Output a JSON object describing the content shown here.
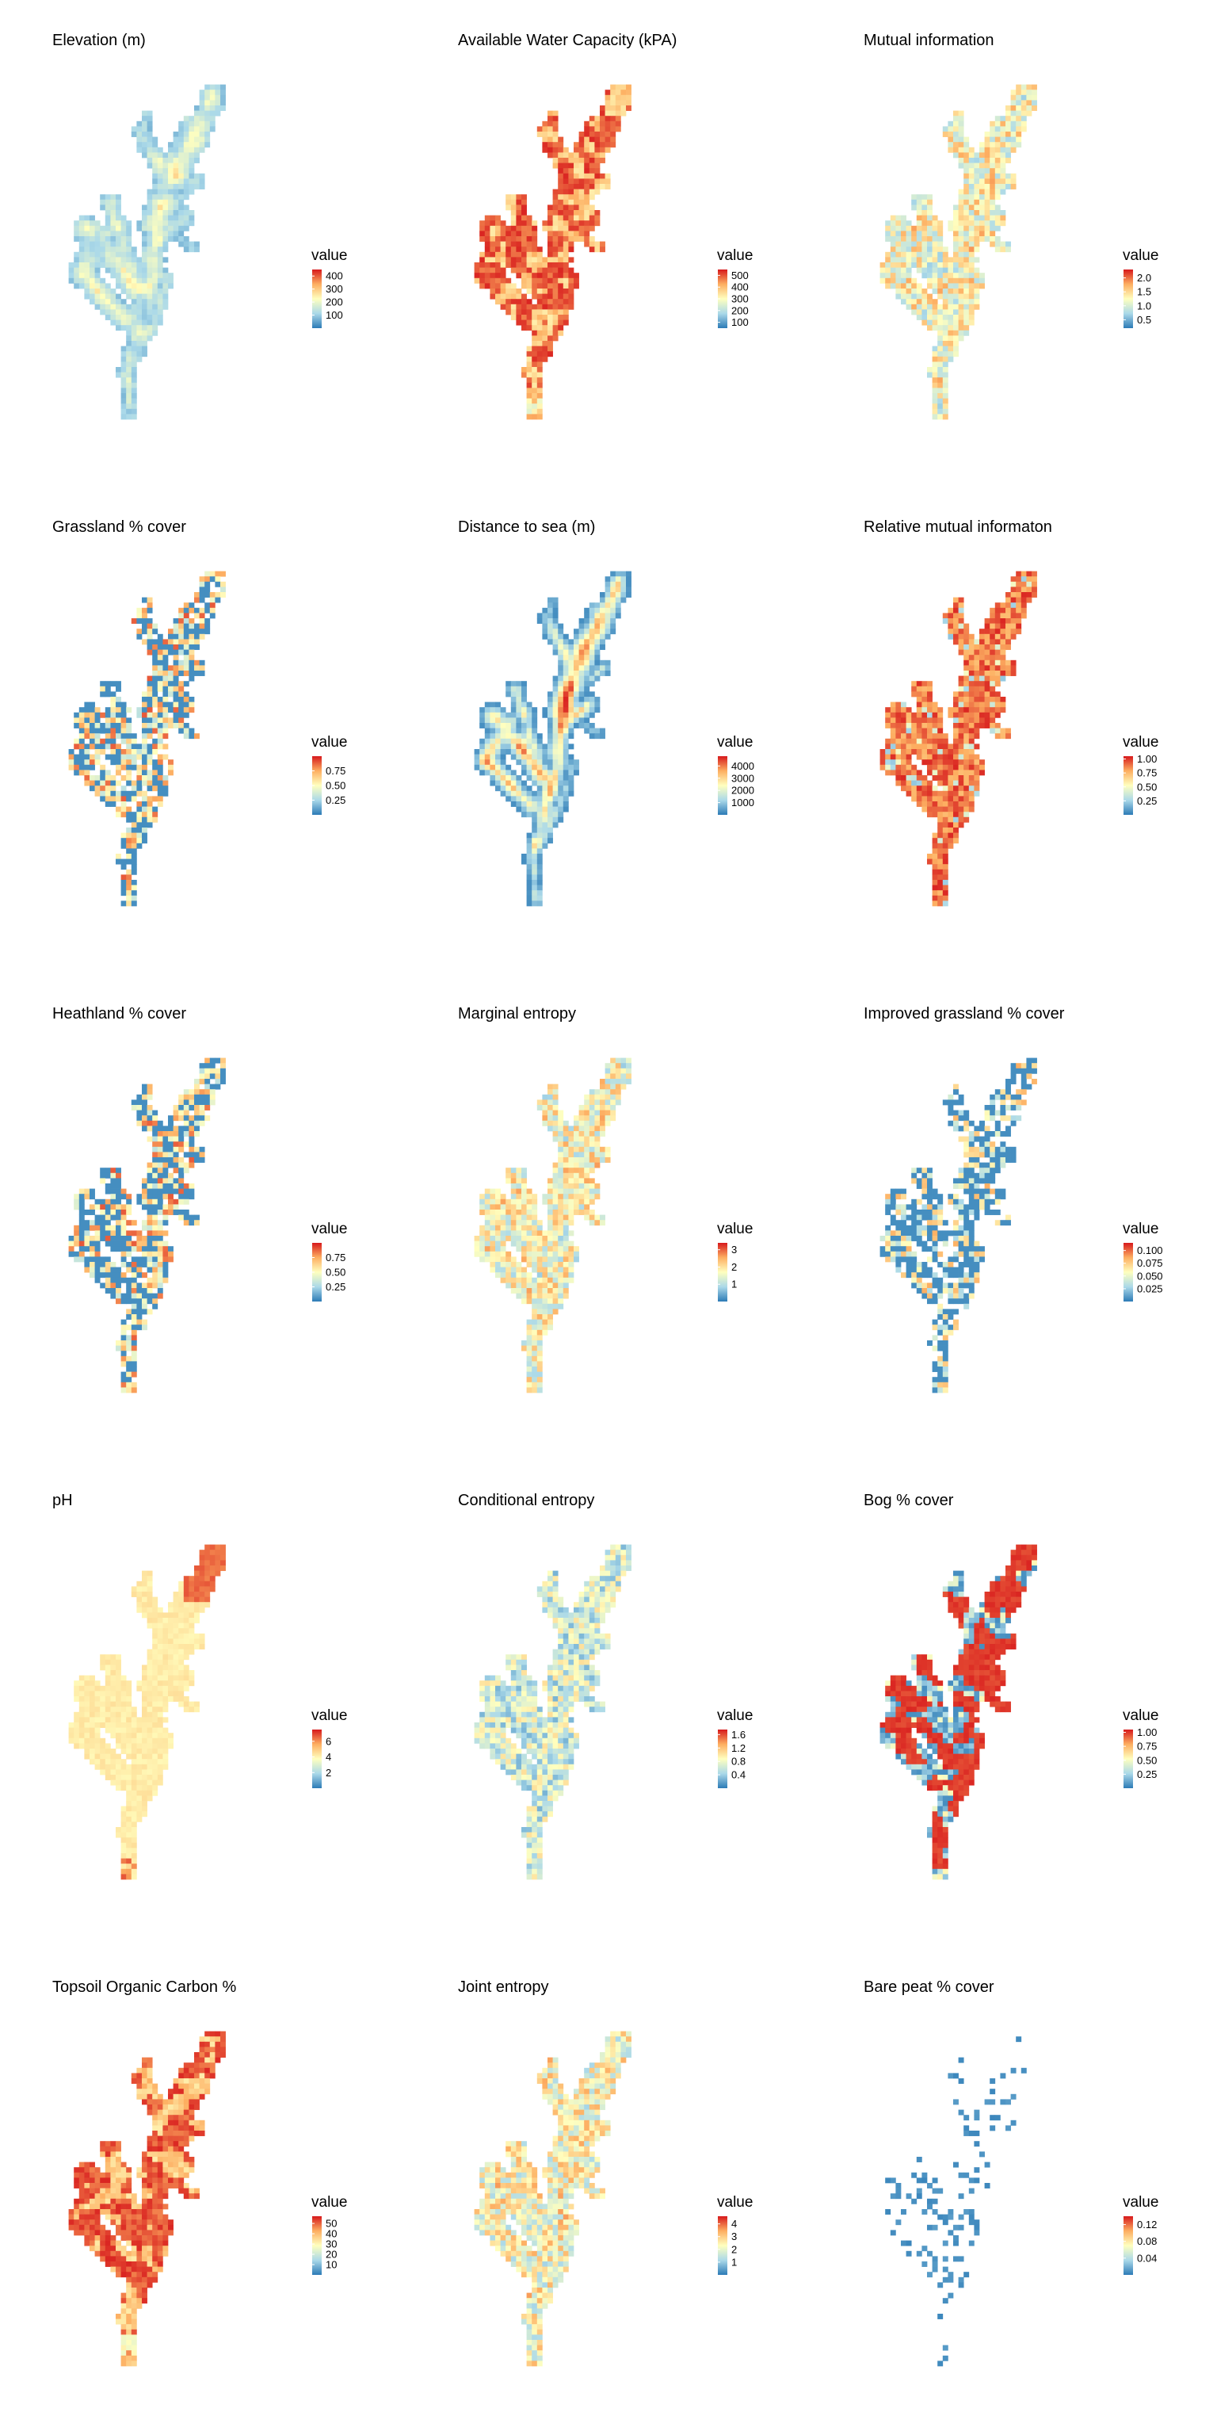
{
  "colors": {
    "palette": [
      "#2c7bb6",
      "#abd9e9",
      "#ffffbf",
      "#fdae61",
      "#d7191c"
    ],
    "background": "#ffffff"
  },
  "legend_title": "value",
  "chart_data": [
    {
      "type": "heatmap",
      "title": "Elevation (m)",
      "legend_title": "value",
      "range": [
        0,
        450
      ],
      "ticks": [
        "400",
        "300",
        "200",
        "100"
      ],
      "tick_values": [
        400,
        300,
        200,
        100
      ],
      "pattern": "elevation"
    },
    {
      "type": "heatmap",
      "title": "Available Water Capacity (kPA)",
      "legend_title": "value",
      "range": [
        50,
        550
      ],
      "ticks": [
        "500",
        "400",
        "300",
        "200",
        "100"
      ],
      "tick_values": [
        500,
        400,
        300,
        200,
        100
      ],
      "pattern": "blocky-high"
    },
    {
      "type": "heatmap",
      "title": "Mutual information",
      "legend_title": "value",
      "range": [
        0.2,
        2.3
      ],
      "ticks": [
        "2.0",
        "1.5",
        "1.0",
        "0.5"
      ],
      "tick_values": [
        2.0,
        1.5,
        1.0,
        0.5
      ],
      "pattern": "noisy-mid"
    },
    {
      "type": "heatmap",
      "title": "Grassland % cover",
      "legend_title": "value",
      "range": [
        0,
        1
      ],
      "ticks": [
        "0.75",
        "0.50",
        "0.25"
      ],
      "tick_values": [
        0.75,
        0.5,
        0.25
      ],
      "pattern": "noisy-low"
    },
    {
      "type": "heatmap",
      "title": "Distance to sea (m)",
      "legend_title": "value",
      "range": [
        0,
        4800
      ],
      "ticks": [
        "4000",
        "3000",
        "2000",
        "1000"
      ],
      "tick_values": [
        4000,
        3000,
        2000,
        1000
      ],
      "pattern": "distance"
    },
    {
      "type": "heatmap",
      "title": "Relative mutual informaton",
      "legend_title": "value",
      "range": [
        0,
        1.05
      ],
      "ticks": [
        "1.00",
        "0.75",
        "0.50",
        "0.25"
      ],
      "tick_values": [
        1.0,
        0.75,
        0.5,
        0.25
      ],
      "pattern": "noisy-high"
    },
    {
      "type": "heatmap",
      "title": "Heathland % cover",
      "legend_title": "value",
      "range": [
        0,
        1
      ],
      "ticks": [
        "0.75",
        "0.50",
        "0.25"
      ],
      "tick_values": [
        0.75,
        0.5,
        0.25
      ],
      "pattern": "noisy-low"
    },
    {
      "type": "heatmap",
      "title": "Marginal entropy",
      "legend_title": "value",
      "range": [
        0,
        3.4
      ],
      "ticks": [
        "3",
        "2",
        "1"
      ],
      "tick_values": [
        3,
        2,
        1
      ],
      "pattern": "noisy-mid"
    },
    {
      "type": "heatmap",
      "title": "Improved grassland % cover",
      "legend_title": "value",
      "range": [
        0,
        0.115
      ],
      "ticks": [
        "0.100",
        "0.075",
        "0.050",
        "0.025"
      ],
      "tick_values": [
        0.1,
        0.075,
        0.05,
        0.025
      ],
      "pattern": "sparse-low"
    },
    {
      "type": "heatmap",
      "title": "pH",
      "legend_title": "value",
      "range": [
        0,
        7.5
      ],
      "ticks": [
        "6",
        "4",
        "2"
      ],
      "tick_values": [
        6,
        4,
        2
      ],
      "pattern": "ph"
    },
    {
      "type": "heatmap",
      "title": "Conditional entropy",
      "legend_title": "value",
      "range": [
        0,
        1.75
      ],
      "ticks": [
        "1.6",
        "1.2",
        "0.8",
        "0.4"
      ],
      "tick_values": [
        1.6,
        1.2,
        0.8,
        0.4
      ],
      "pattern": "noisy-lowmid"
    },
    {
      "type": "heatmap",
      "title": "Bog % cover",
      "legend_title": "value",
      "range": [
        0,
        1.05
      ],
      "ticks": [
        "1.00",
        "0.75",
        "0.50",
        "0.25"
      ],
      "tick_values": [
        1.0,
        0.75,
        0.5,
        0.25
      ],
      "pattern": "bog"
    },
    {
      "type": "heatmap",
      "title": "Topsoil Organic Carbon %",
      "legend_title": "value",
      "range": [
        0,
        57
      ],
      "ticks": [
        "50",
        "40",
        "30",
        "20",
        "10"
      ],
      "tick_values": [
        50,
        40,
        30,
        20,
        10
      ],
      "pattern": "blocky-high"
    },
    {
      "type": "heatmap",
      "title": "Joint entropy",
      "legend_title": "value",
      "range": [
        0,
        4.6
      ],
      "ticks": [
        "4",
        "3",
        "2",
        "1"
      ],
      "tick_values": [
        4,
        3,
        2,
        1
      ],
      "pattern": "noisy-mid"
    },
    {
      "type": "heatmap",
      "title": "Bare peat % cover",
      "legend_title": "value",
      "range": [
        0,
        0.14
      ],
      "ticks": [
        "0.12",
        "0.08",
        "0.04"
      ],
      "tick_values": [
        0.12,
        0.08,
        0.04
      ],
      "pattern": "sparse-peat"
    }
  ]
}
